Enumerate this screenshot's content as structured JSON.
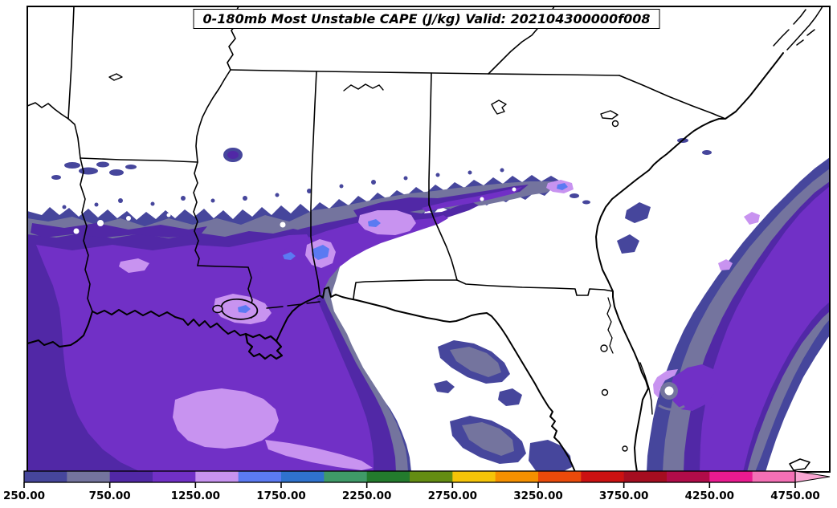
{
  "figure": {
    "title": "0-180mb Most Unstable CAPE (J/kg) Valid: 202104300000f008"
  },
  "palette": {
    "land": "#FFFFFF",
    "outline": "#000000",
    "cape_250": "#46469C",
    "cape_500": "#74749E",
    "cape_750": "#5128A6",
    "cape_1000": "#7130C6",
    "cape_1250": "#C893F0",
    "cape_1500": "#5B7AF2"
  },
  "colorbar": {
    "tick_labels": [
      "250.00",
      "750.00",
      "1250.00",
      "1750.00",
      "2250.00",
      "2750.00",
      "3250.00",
      "3750.00",
      "4250.00",
      "4750.00"
    ],
    "segments": [
      {
        "level": 250,
        "color": "#46469C"
      },
      {
        "level": 500,
        "color": "#74749E"
      },
      {
        "level": 750,
        "color": "#5128A6"
      },
      {
        "level": 1000,
        "color": "#7130C6"
      },
      {
        "level": 1250,
        "color": "#C893F0"
      },
      {
        "level": 1500,
        "color": "#5B7AF2"
      },
      {
        "level": 1750,
        "color": "#2F72CE"
      },
      {
        "level": 2000,
        "color": "#3F9A68"
      },
      {
        "level": 2250,
        "color": "#237B2D"
      },
      {
        "level": 2500,
        "color": "#648D12"
      },
      {
        "level": 2750,
        "color": "#F5C408"
      },
      {
        "level": 3000,
        "color": "#F59000"
      },
      {
        "level": 3250,
        "color": "#EA4A0A"
      },
      {
        "level": 3500,
        "color": "#CC1111"
      },
      {
        "level": 3750,
        "color": "#A50D20"
      },
      {
        "level": 4000,
        "color": "#B10C49"
      },
      {
        "level": 4250,
        "color": "#EA1A90"
      },
      {
        "level": 4500,
        "color": "#F470B5"
      }
    ],
    "arrow_color": "#F9A6D2"
  },
  "chart_data": {
    "type": "filled_contour_map",
    "title": "0-180mb Most Unstable CAPE (J/kg) Valid: 202104300000f008",
    "variable": "Most Unstable CAPE (0-180mb)",
    "units": "J/kg",
    "valid_time": "202104300000f008",
    "region": "Southeastern United States, Gulf of Mexico and western Atlantic",
    "contour_levels": [
      250,
      500,
      750,
      1000,
      1250,
      1500,
      1750,
      2000,
      2250,
      2500,
      2750,
      3000,
      3250,
      3500,
      3750,
      4000,
      4250,
      4500,
      4750
    ],
    "colorbar_tick_labels": [
      "250.00",
      "750.00",
      "1250.00",
      "1750.00",
      "2250.00",
      "2750.00",
      "3250.00",
      "3750.00",
      "4250.00",
      "4750.00"
    ],
    "legend_position": "bottom",
    "features": [
      "CAPE of 250-1500 J/kg covers the Gulf of Mexico, Louisiana, southern Mississippi and a band through central Alabama into western Georgia",
      "Local maxima of 1250-1750 J/kg lie south of Louisiana, around the Mississippi River delta, and along the central Mississippi/Alabama band",
      "An elongated 250-1500 J/kg band lies offshore of the Southeast U.S. Atlantic coast from Florida toward the Carolinas",
      "A small eye-like swirl appears in the CAPE field just offshore of Cape Canaveral, Florida",
      "Only the 250-1750 J/kg portion of the color scale is realized on the map; the scale extends to above 4750 J/kg"
    ]
  }
}
